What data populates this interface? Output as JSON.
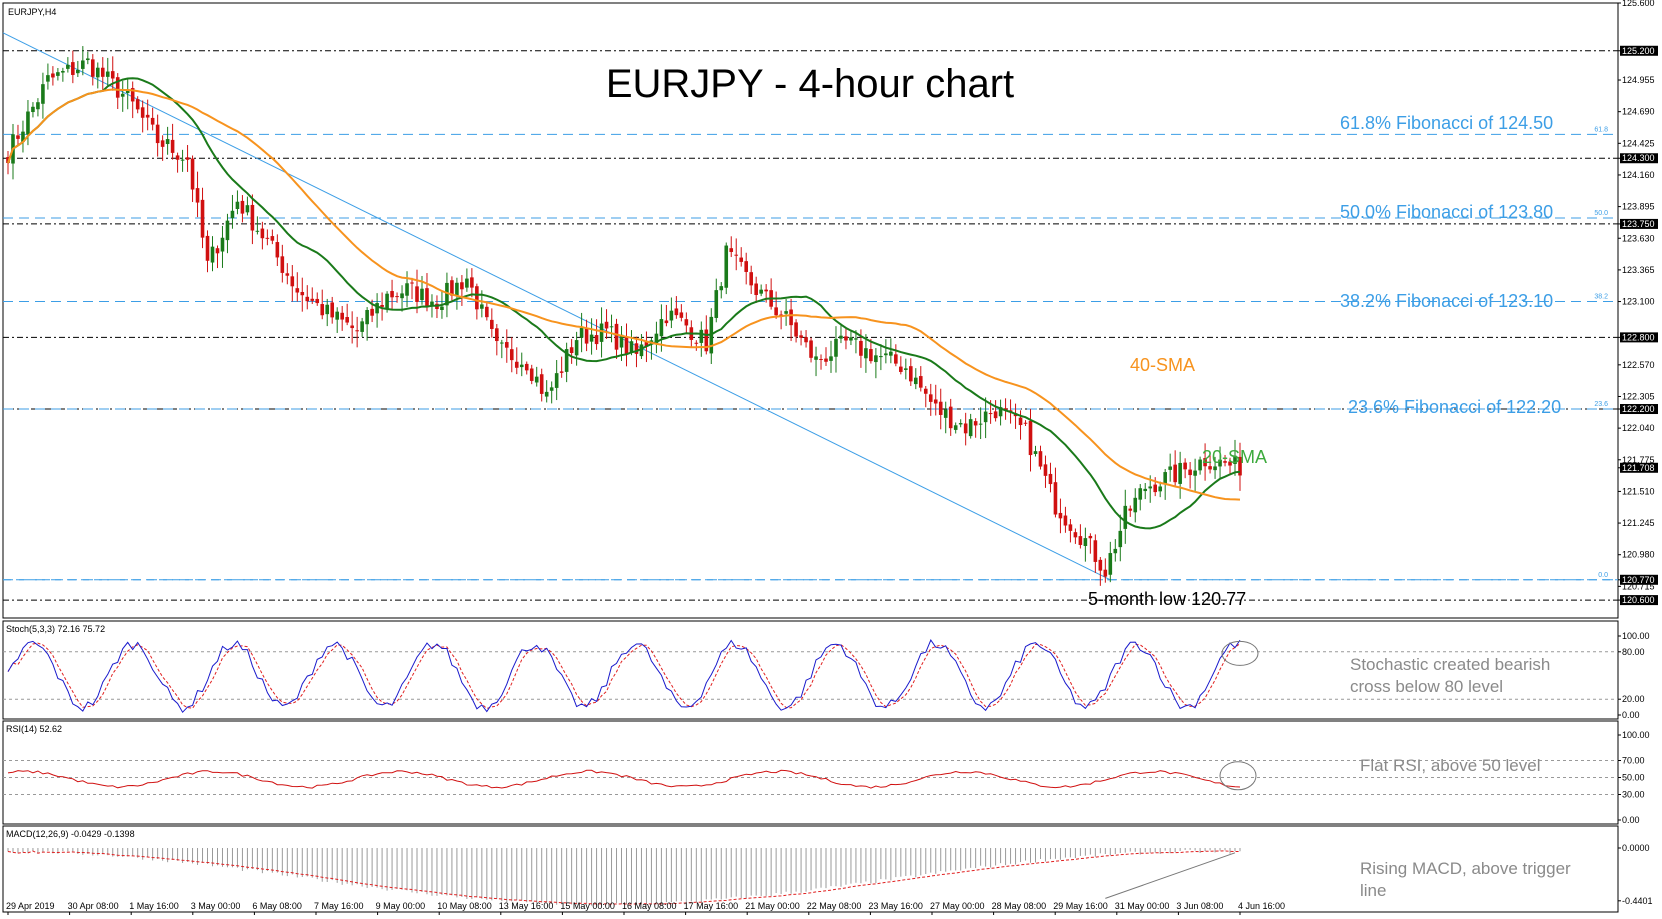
{
  "symbol_label": "EURJPY,H4",
  "chart_data": [
    {
      "type": "candlestick",
      "title": "EURJPY - 4-hour chart",
      "ylim": [
        120.45,
        125.6
      ],
      "price_ticks": [
        "125.600",
        "125.200",
        "124.955",
        "124.690",
        "124.425",
        "124.300",
        "124.160",
        "123.895",
        "123.750",
        "123.630",
        "123.365",
        "123.100",
        "122.800",
        "122.570",
        "122.305",
        "122.200",
        "122.040",
        "121.775",
        "121.708",
        "121.510",
        "121.245",
        "120.980",
        "120.770",
        "120.715",
        "120.600"
      ],
      "highlighted_ticks": [
        "125.200",
        "124.300",
        "123.750",
        "122.800",
        "122.200",
        "121.708",
        "120.770",
        "120.600"
      ],
      "x_labels": [
        "29 Apr 2019",
        "30 Apr 08:00",
        "1 May 16:00",
        "3 May 00:00",
        "6 May 08:00",
        "7 May 16:00",
        "9 May 00:00",
        "10 May 08:00",
        "13 May 16:00",
        "15 May 00:00",
        "16 May 08:00",
        "17 May 16:00",
        "21 May 00:00",
        "22 May 08:00",
        "23 May 16:00",
        "27 May 00:00",
        "28 May 08:00",
        "29 May 16:00",
        "31 May 00:00",
        "3 Jun 08:00",
        "4 Jun 16:00"
      ],
      "close_waypoints": [
        [
          0,
          124.35
        ],
        [
          8,
          124.95
        ],
        [
          16,
          125.1
        ],
        [
          24,
          124.8
        ],
        [
          30,
          124.45
        ],
        [
          36,
          124.3
        ],
        [
          40,
          123.4
        ],
        [
          46,
          123.95
        ],
        [
          52,
          123.6
        ],
        [
          58,
          123.2
        ],
        [
          64,
          123.0
        ],
        [
          70,
          122.85
        ],
        [
          76,
          123.15
        ],
        [
          80,
          123.2
        ],
        [
          86,
          123.1
        ],
        [
          92,
          123.3
        ],
        [
          98,
          122.7
        ],
        [
          104,
          122.6
        ],
        [
          108,
          122.3
        ],
        [
          114,
          122.8
        ],
        [
          120,
          122.85
        ],
        [
          126,
          122.65
        ],
        [
          132,
          123.0
        ],
        [
          136,
          122.9
        ],
        [
          140,
          122.75
        ],
        [
          144,
          123.5
        ],
        [
          150,
          123.2
        ],
        [
          156,
          122.95
        ],
        [
          162,
          122.6
        ],
        [
          168,
          122.75
        ],
        [
          174,
          122.65
        ],
        [
          180,
          122.55
        ],
        [
          186,
          122.2
        ],
        [
          192,
          122.05
        ],
        [
          198,
          122.2
        ],
        [
          204,
          122.0
        ],
        [
          210,
          121.4
        ],
        [
          216,
          121.1
        ],
        [
          220,
          120.85
        ],
        [
          224,
          121.3
        ],
        [
          228,
          121.55
        ],
        [
          234,
          121.65
        ],
        [
          240,
          121.78
        ],
        [
          246,
          121.72
        ]
      ],
      "sma20": {
        "name": "20-SMA",
        "color": "#1a7a1a",
        "label_color": "#3daa3d"
      },
      "sma40": {
        "name": "40-SMA",
        "color": "#f7931e",
        "label_color": "#f7931e"
      },
      "fib_levels": [
        {
          "label": "61.8% Fibonacci of 124.50",
          "price": 124.5,
          "tag": "61.8"
        },
        {
          "label": "50.0% Fibonacci of 123.80",
          "price": 123.8,
          "tag": "50.0"
        },
        {
          "label": "38.2% Fibonacci of 123.10",
          "price": 123.1,
          "tag": "38.2"
        },
        {
          "label": "23.6% Fibonacci of 122.20",
          "price": 122.2,
          "tag": "23.6"
        },
        {
          "label": "",
          "price": 120.77,
          "tag": "0.0"
        }
      ],
      "horizontal_levels": [
        125.2,
        124.3,
        123.75,
        122.8,
        122.2,
        120.77,
        120.6
      ],
      "annotations": {
        "sma40_label": "40-SMA",
        "sma20_label": "20-SMA",
        "low_label": "5-month low 120.77"
      },
      "colors": {
        "bull": "#1a7a1a",
        "bear": "#d01010",
        "fib": "#3c9ee6",
        "trendline": "#3c9ee6",
        "grid_dash": "#000000"
      }
    },
    {
      "type": "line",
      "title": "Stoch(5,3,3) 72.16 75.72",
      "ylim": [
        0,
        100
      ],
      "ticks": [
        "100.00",
        "80.00",
        "20.00",
        "0.00"
      ],
      "annotation": "Stochastic created bearish cross below 80 level",
      "annotation_lines": [
        "Stochastic created bearish",
        "cross below 80 level"
      ],
      "series_colors": {
        "k": "#1a1acc",
        "d": "#e02020"
      }
    },
    {
      "type": "line",
      "title": "RSI(14) 52.62",
      "ylim": [
        0,
        100
      ],
      "ticks": [
        "100.00",
        "70.00",
        "50.00",
        "30.00",
        "0.00"
      ],
      "annotation": "Flat RSI, above 50 level",
      "series_colors": {
        "rsi": "#d01010"
      }
    },
    {
      "type": "bar",
      "title": "MACD(12,26,9) -0.0429 -0.1398",
      "ylim": [
        -0.5,
        0.05
      ],
      "ticks": [
        "0.0000",
        "-0.4401"
      ],
      "annotation": "Rising MACD, above trigger line",
      "annotation_lines": [
        "Rising MACD, above trigger",
        "line"
      ],
      "series_colors": {
        "hist": "#9a9a9a",
        "signal": "#e02020"
      }
    }
  ]
}
